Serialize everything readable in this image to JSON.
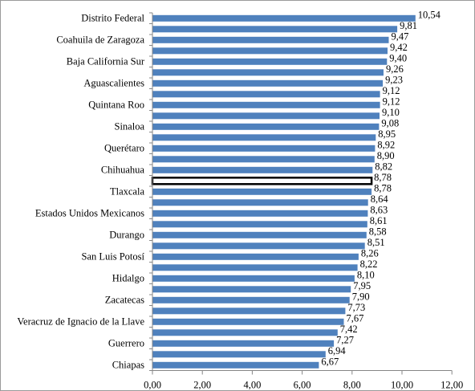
{
  "chart_data": {
    "type": "bar",
    "orientation": "horizontal",
    "categories": [
      "Distrito Federal",
      "",
      "Coahuila de Zaragoza",
      "",
      "Baja California Sur",
      "",
      "Aguascalientes",
      "",
      "Quintana Roo",
      "",
      "Sinaloa",
      "",
      "Querétaro",
      "",
      "Chihuahua",
      "",
      "Tlaxcala",
      "",
      "Estados Unidos Mexicanos",
      "",
      "Durango",
      "",
      "San Luis Potosí",
      "",
      "Hidalgo",
      "",
      "Zacatecas",
      "",
      "Veracruz de Ignacio de la Llave",
      "",
      "Guerrero",
      "",
      "Chiapas"
    ],
    "values": [
      10.54,
      9.81,
      9.47,
      9.42,
      9.4,
      9.26,
      9.23,
      9.12,
      9.12,
      9.1,
      9.08,
      8.95,
      8.92,
      8.9,
      8.82,
      8.78,
      8.78,
      8.64,
      8.63,
      8.61,
      8.58,
      8.51,
      8.26,
      8.22,
      8.1,
      7.95,
      7.9,
      7.73,
      7.67,
      7.42,
      7.27,
      6.94,
      6.67
    ],
    "value_labels": [
      "10,54",
      "9,81",
      "9,47",
      "9,42",
      "9,40",
      "9,26",
      "9,23",
      "9,12",
      "9,12",
      "9,10",
      "9,08",
      "8,95",
      "8,92",
      "8,90",
      "8,82",
      "8,78",
      "8,78",
      "8,64",
      "8,63",
      "8,61",
      "8,58",
      "8,51",
      "8,26",
      "8,22",
      "8,10",
      "7,95",
      "7,90",
      "7,73",
      "7,67",
      "7,42",
      "7,27",
      "6,94",
      "6,67"
    ],
    "highlighted_index": 15,
    "xlim": [
      0,
      12
    ],
    "xticks": [
      0,
      2,
      4,
      6,
      8,
      10,
      12
    ],
    "xtick_labels": [
      "0,00",
      "2,00",
      "4,00",
      "6,00",
      "8,00",
      "10,00",
      "12,00"
    ],
    "title": "",
    "xlabel": "",
    "ylabel": "",
    "grid": false,
    "legend": "none",
    "colors": {
      "bar": "#4f81bd",
      "highlight_fill": "#ffffff",
      "highlight_outline": "#000000",
      "axis": "#868686",
      "text": "#000000",
      "frame": "#9a9a9a"
    }
  }
}
